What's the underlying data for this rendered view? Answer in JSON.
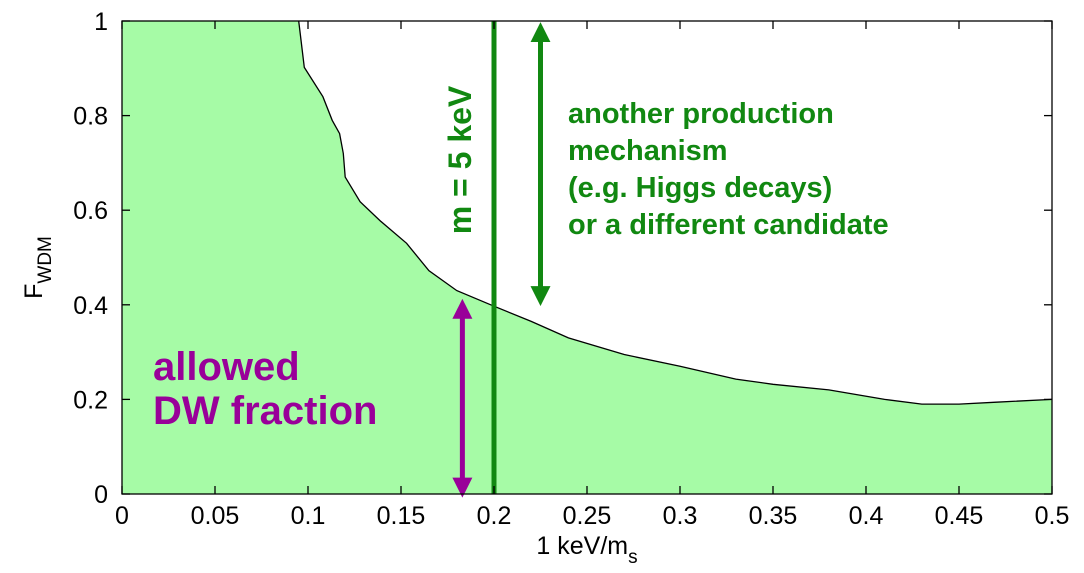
{
  "chart_data": {
    "type": "area",
    "xlabel": {
      "main": "1 keV/m",
      "sub": "s"
    },
    "ylabel": {
      "main": "F",
      "sub": "WDM"
    },
    "xlim": [
      0,
      0.5
    ],
    "ylim": [
      0,
      1
    ],
    "x_ticks": [
      0,
      0.05,
      0.1,
      0.15,
      0.2,
      0.25,
      0.3,
      0.35,
      0.4,
      0.45,
      0.5
    ],
    "x_tick_labels": [
      "0",
      "0.05",
      "0.1",
      "0.15",
      "0.2",
      "0.25",
      "0.3",
      "0.35",
      "0.4",
      "0.45",
      "0.5"
    ],
    "y_ticks": [
      0,
      0.2,
      0.4,
      0.6,
      0.8,
      1
    ],
    "y_tick_labels": [
      "0",
      "0.2",
      "0.4",
      "0.6",
      "0.8",
      "1"
    ],
    "grid": false,
    "fill_color": "#a6fba6",
    "boundary": {
      "x": [
        0.095,
        0.098,
        0.108,
        0.113,
        0.117,
        0.119,
        0.12,
        0.128,
        0.139,
        0.153,
        0.165,
        0.18,
        0.2,
        0.22,
        0.24,
        0.27,
        0.3,
        0.33,
        0.35,
        0.38,
        0.41,
        0.43,
        0.45,
        0.47,
        0.5
      ],
      "y": [
        1.0,
        0.902,
        0.84,
        0.79,
        0.762,
        0.72,
        0.67,
        0.618,
        0.577,
        0.53,
        0.472,
        0.43,
        0.397,
        0.365,
        0.33,
        0.295,
        0.27,
        0.243,
        0.232,
        0.22,
        0.2,
        0.19,
        0.19,
        0.194,
        0.2
      ]
    },
    "vertical_line": {
      "x": 0.2,
      "label": "m = 5 keV",
      "color": "#118811"
    },
    "annotations": [
      {
        "lines": [
          "allowed",
          "DW fraction"
        ],
        "color": "#990099",
        "x": 0.055,
        "y": 0.17
      },
      {
        "lines": [
          "another production",
          "mechanism",
          "(e.g. Higgs decays)",
          "or a different candidate"
        ],
        "color": "#118811",
        "x": 0.325,
        "y": 0.7
      }
    ],
    "arrows": [
      {
        "x": 0.183,
        "y_from": 0.005,
        "y_to": 0.4,
        "color": "#990099"
      },
      {
        "x": 0.225,
        "y_from": 0.41,
        "y_to": 0.985,
        "color": "#118811"
      }
    ]
  }
}
